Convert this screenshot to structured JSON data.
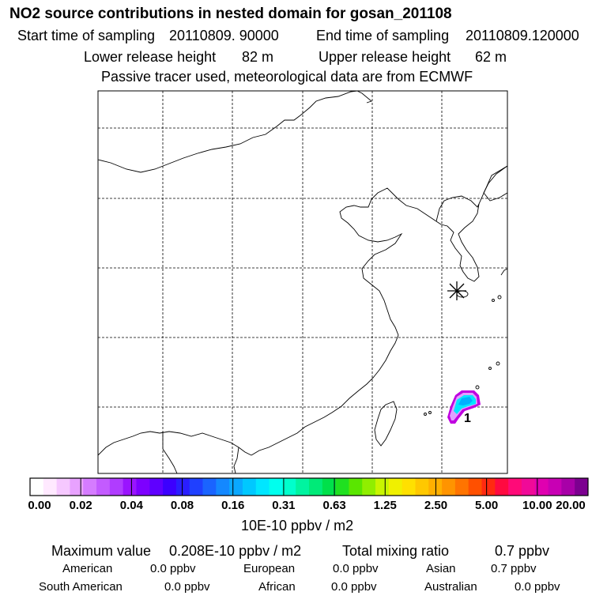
{
  "header": {
    "title": "NO2 source contributions in nested domain for gosan_201108",
    "start_label": "Start time of sampling",
    "start_value": "20110809. 90000",
    "end_label": "End time of sampling",
    "end_value": "20110809.120000",
    "lower_label": "Lower release height",
    "lower_value": "82 m",
    "upper_label": "Upper release height",
    "upper_value": "62 m",
    "note": "Passive tracer used, meteorological data are from ECMWF"
  },
  "map": {
    "receptor_marker": "asterisk-marker",
    "plume_label": "1"
  },
  "colorbar": {
    "ticks": [
      "0.00",
      "0.02",
      "0.04",
      "0.08",
      "0.16",
      "0.31",
      "0.63",
      "1.25",
      "2.50",
      "5.00",
      "10.00",
      "20.00"
    ],
    "unit": "10E-10 ppbv / m2",
    "colors": [
      "#ffffff",
      "#ffe9ff",
      "#f6c8ff",
      "#e8a2ff",
      "#d57cff",
      "#c35bff",
      "#b03cff",
      "#9a14ff",
      "#7d00ff",
      "#5f00ff",
      "#3c00ff",
      "#2a1eff",
      "#1f40ff",
      "#1a64ff",
      "#1488ff",
      "#0aa8ff",
      "#00c8ff",
      "#00e6ff",
      "#00ffee",
      "#00ffcc",
      "#00f4a0",
      "#00ea78",
      "#00e04a",
      "#20e020",
      "#5ae600",
      "#90ee00",
      "#c8f500",
      "#f0f000",
      "#ffe000",
      "#ffc800",
      "#ffb000",
      "#ff9400",
      "#ff7400",
      "#ff5000",
      "#ff2a10",
      "#ff0a40",
      "#ff0a78",
      "#f00a98",
      "#e000b0",
      "#c800b4",
      "#a800a8",
      "#7c0090"
    ]
  },
  "summary": {
    "max_label": "Maximum value",
    "max_value": "0.208E-10 ppbv / m2",
    "total_label": "Total mixing ratio",
    "total_value": "0.7 ppbv",
    "regions": [
      {
        "name": "American",
        "value": "0.0 ppbv"
      },
      {
        "name": "European",
        "value": "0.0 ppbv"
      },
      {
        "name": "Asian",
        "value": "0.7 ppbv"
      },
      {
        "name": "South American",
        "value": "0.0 ppbv"
      },
      {
        "name": "African",
        "value": "0.0 ppbv"
      },
      {
        "name": "Australian",
        "value": "0.0 ppbv"
      }
    ]
  }
}
